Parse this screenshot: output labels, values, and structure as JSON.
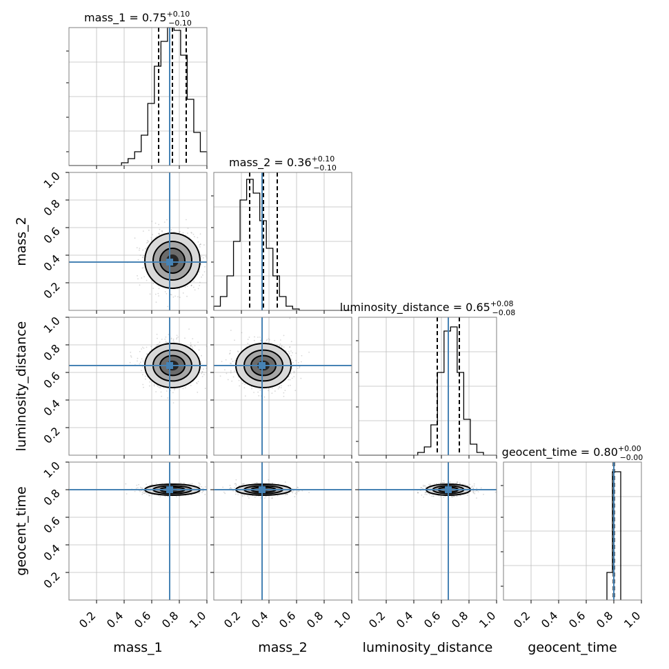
{
  "chart_data": {
    "type": "corner",
    "parameters": [
      {
        "name": "mass_1",
        "label": "mass_1",
        "title_base": "mass_1 = 0.75",
        "plus": "+0.10",
        "minus": "−0.10",
        "median": 0.75,
        "q_low": 0.65,
        "q_high": 0.85,
        "truth": 0.73,
        "sigma": 0.1,
        "hist_y": [
          0,
          0,
          0,
          0,
          0,
          0,
          0,
          0,
          0.02,
          0.05,
          0.1,
          0.22,
          0.45,
          0.72,
          0.9,
          1.0,
          0.98,
          0.8,
          0.48,
          0.24,
          0.1
        ]
      },
      {
        "name": "mass_2",
        "label": "mass_2",
        "title_base": "mass_2 = 0.36",
        "plus": "+0.10",
        "minus": "−0.10",
        "median": 0.36,
        "q_low": 0.26,
        "q_high": 0.46,
        "truth": 0.35,
        "sigma": 0.1,
        "hist_y": [
          0.03,
          0.1,
          0.25,
          0.5,
          0.8,
          0.95,
          0.85,
          0.65,
          0.45,
          0.25,
          0.1,
          0.03,
          0.01,
          0,
          0,
          0,
          0,
          0,
          0,
          0,
          0
        ]
      },
      {
        "name": "luminosity_distance",
        "label": "luminosity_distance",
        "title_base": "luminosity_distance = 0.65",
        "plus": "+0.08",
        "minus": "−0.08",
        "median": 0.65,
        "q_low": 0.57,
        "q_high": 0.73,
        "truth": 0.65,
        "sigma": 0.08,
        "hist_y": [
          0,
          0,
          0,
          0,
          0,
          0,
          0,
          0,
          0,
          0.02,
          0.06,
          0.22,
          0.6,
          0.9,
          0.93,
          0.6,
          0.26,
          0.08,
          0.02,
          0,
          0
        ]
      },
      {
        "name": "geocent_time",
        "label": "geocent_time",
        "title_base": "geocent_time = 0.80",
        "plus": "+0.00",
        "minus": "−0.00",
        "median": 0.8,
        "q_low": 0.797,
        "q_high": 0.803,
        "truth": 0.8,
        "sigma": 0.02,
        "hist_bins": [
          {
            "x0": 0.75,
            "x1": 0.79,
            "y": 0.2
          },
          {
            "x0": 0.79,
            "x1": 0.85,
            "y": 0.93
          }
        ]
      }
    ],
    "axis_range": [
      0.0,
      1.0
    ],
    "ticks": [
      0.2,
      0.4,
      0.6,
      0.8,
      1.0
    ],
    "tick_labels": [
      "0.2",
      "0.4",
      "0.6",
      "0.8",
      "1.0"
    ],
    "grid": true,
    "colors": {
      "truth": "#4682b4",
      "hist": "#000000",
      "contour": "#000000",
      "grid": "#bdbdbd"
    }
  }
}
